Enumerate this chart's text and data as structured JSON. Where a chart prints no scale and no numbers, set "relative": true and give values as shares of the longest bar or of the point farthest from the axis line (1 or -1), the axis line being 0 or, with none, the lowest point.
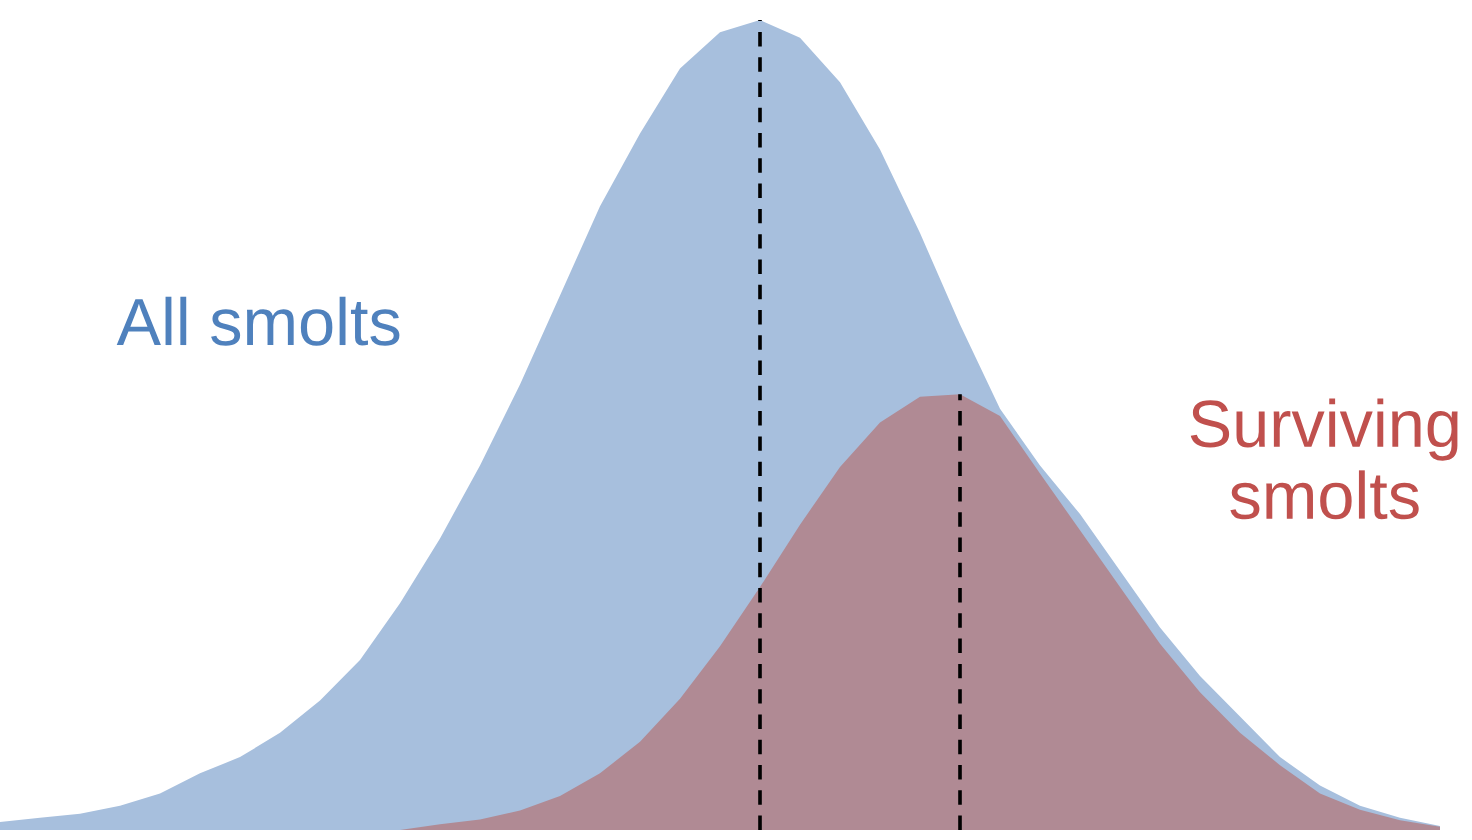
{
  "chart_data": {
    "type": "area",
    "relative": true,
    "categories": [
      null,
      null,
      null,
      null,
      null,
      null,
      null,
      null,
      null,
      null,
      null,
      null,
      null,
      null,
      null,
      null,
      null,
      null,
      null,
      null,
      null,
      null,
      null,
      null,
      null,
      null,
      null,
      null,
      null,
      null,
      null,
      null,
      null,
      null,
      null,
      null,
      null
    ],
    "series": [
      {
        "name": "All smolts",
        "color": "#a7bfdd",
        "values": [
          0.01,
          0.015,
          0.02,
          0.03,
          0.045,
          0.07,
          0.09,
          0.12,
          0.16,
          0.21,
          0.28,
          0.36,
          0.45,
          0.55,
          0.66,
          0.77,
          0.86,
          0.94,
          0.985,
          1.0,
          0.978,
          0.923,
          0.84,
          0.737,
          0.624,
          0.52,
          0.45,
          0.39,
          0.32,
          0.25,
          0.19,
          0.14,
          0.09,
          0.055,
          0.03,
          0.015,
          0.005
        ]
      },
      {
        "name": "Surviving smolts",
        "color": "#b08a94",
        "values": [
          0,
          0,
          0,
          0,
          0,
          0,
          0,
          0,
          0,
          0,
          0,
          0.007,
          0.013,
          0.024,
          0.042,
          0.07,
          0.109,
          0.162,
          0.227,
          0.3,
          0.377,
          0.448,
          0.503,
          0.535,
          0.538,
          0.511,
          0.44,
          0.37,
          0.3,
          0.23,
          0.17,
          0.12,
          0.08,
          0.045,
          0.025,
          0.012,
          0.004
        ]
      }
    ]
  }
}
